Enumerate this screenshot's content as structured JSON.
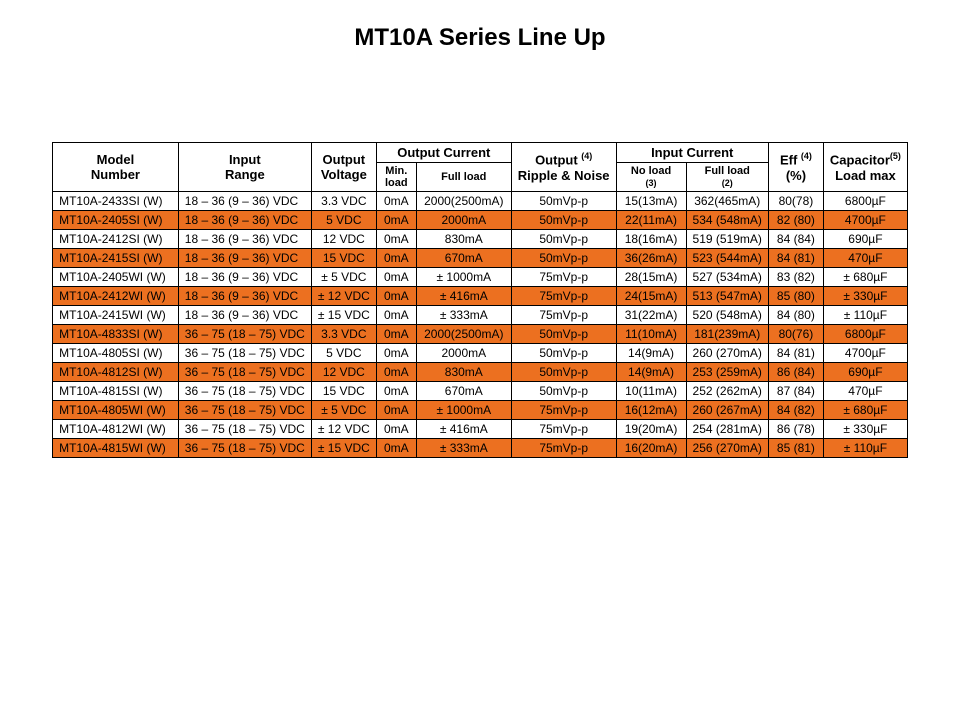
{
  "title": "MT10A Series Line Up",
  "highlight_color": "#ec7020",
  "headers": {
    "model": "Model\nNumber",
    "range": "Input\nRange",
    "ovolt": "Output\nVoltage",
    "outcur": "Output Current",
    "min": "Min.\nload",
    "full": "Full load",
    "ripple_sup": "(4)",
    "ripple_a": "Output",
    "ripple_b": "Ripple & Noise",
    "incur": "Input Current",
    "noload": "No load",
    "noload_sup": "(3)",
    "fullload": "Full load",
    "fullload_sup": "(2)",
    "eff": "Eff",
    "eff_sup": "(4)",
    "eff_unit": "(%)",
    "cap": "Capacitor",
    "cap_sup": "(5)",
    "cap_b": "Load max"
  },
  "rows": [
    {
      "hl": false,
      "model": "MT10A-2433SI (W)",
      "range": "18 – 36 (9 – 36) VDC",
      "ovolt": "3.3 VDC",
      "min": "0mA",
      "full": "2000(2500mA)",
      "ripple": "50mVp-p",
      "noload": "15(13mA)",
      "fullload": "362(465mA)",
      "eff": "80(78)",
      "cap": "6800µF"
    },
    {
      "hl": true,
      "model": "MT10A-2405SI (W)",
      "range": "18 – 36 (9 – 36) VDC",
      "ovolt": "5 VDC",
      "min": "0mA",
      "full": "2000mA",
      "ripple": "50mVp-p",
      "noload": "22(11mA)",
      "fullload": "534 (548mA)",
      "eff": "82 (80)",
      "cap": "4700µF"
    },
    {
      "hl": false,
      "model": "MT10A-2412SI (W)",
      "range": "18 – 36 (9 – 36) VDC",
      "ovolt": "12 VDC",
      "min": "0mA",
      "full": "830mA",
      "ripple": "50mVp-p",
      "noload": "18(16mA)",
      "fullload": "519 (519mA)",
      "eff": "84 (84)",
      "cap": "690µF"
    },
    {
      "hl": true,
      "model": "MT10A-2415SI (W)",
      "range": "18 – 36 (9 – 36) VDC",
      "ovolt": "15 VDC",
      "min": "0mA",
      "full": "670mA",
      "ripple": "50mVp-p",
      "noload": "36(26mA)",
      "fullload": "523 (544mA)",
      "eff": "84 (81)",
      "cap": "470µF"
    },
    {
      "hl": false,
      "model": "MT10A-2405WI (W)",
      "range": "18 – 36 (9 – 36) VDC",
      "ovolt": "± 5 VDC",
      "min": "0mA",
      "full": "± 1000mA",
      "ripple": "75mVp-p",
      "noload": "28(15mA)",
      "fullload": "527 (534mA)",
      "eff": "83 (82)",
      "cap": "± 680µF"
    },
    {
      "hl": true,
      "model": "MT10A-2412WI (W)",
      "range": "18 – 36 (9 – 36) VDC",
      "ovolt": "± 12 VDC",
      "min": "0mA",
      "full": "± 416mA",
      "ripple": "75mVp-p",
      "noload": "24(15mA)",
      "fullload": "513 (547mA)",
      "eff": "85 (80)",
      "cap": "± 330µF"
    },
    {
      "hl": false,
      "model": "MT10A-2415WI (W)",
      "range": "18 – 36 (9 – 36) VDC",
      "ovolt": "± 15 VDC",
      "min": "0mA",
      "full": "± 333mA",
      "ripple": "75mVp-p",
      "noload": "31(22mA)",
      "fullload": "520 (548mA)",
      "eff": "84 (80)",
      "cap": "± 110µF"
    },
    {
      "hl": true,
      "model": "MT10A-4833SI (W)",
      "range": "36 – 75 (18 – 75) VDC",
      "ovolt": "3.3 VDC",
      "min": "0mA",
      "full": "2000(2500mA)",
      "ripple": "50mVp-p",
      "noload": "11(10mA)",
      "fullload": "181(239mA)",
      "eff": "80(76)",
      "cap": "6800µF"
    },
    {
      "hl": false,
      "model": "MT10A-4805SI (W)",
      "range": "36 – 75 (18 – 75) VDC",
      "ovolt": "5 VDC",
      "min": "0mA",
      "full": "2000mA",
      "ripple": "50mVp-p",
      "noload": "14(9mA)",
      "fullload": "260 (270mA)",
      "eff": "84 (81)",
      "cap": "4700µF"
    },
    {
      "hl": true,
      "model": "MT10A-4812SI (W)",
      "range": "36 – 75 (18 – 75) VDC",
      "ovolt": "12 VDC",
      "min": "0mA",
      "full": "830mA",
      "ripple": "50mVp-p",
      "noload": "14(9mA)",
      "fullload": "253 (259mA)",
      "eff": "86 (84)",
      "cap": "690µF"
    },
    {
      "hl": false,
      "model": "MT10A-4815SI (W)",
      "range": "36 – 75 (18 – 75) VDC",
      "ovolt": "15 VDC",
      "min": "0mA",
      "full": "670mA",
      "ripple": "50mVp-p",
      "noload": "10(11mA)",
      "fullload": "252 (262mA)",
      "eff": "87 (84)",
      "cap": "470µF"
    },
    {
      "hl": true,
      "model": "MT10A-4805WI (W)",
      "range": "36 – 75 (18 – 75) VDC",
      "ovolt": "± 5 VDC",
      "min": "0mA",
      "full": "± 1000mA",
      "ripple": "75mVp-p",
      "noload": "16(12mA)",
      "fullload": "260 (267mA)",
      "eff": "84 (82)",
      "cap": "± 680µF"
    },
    {
      "hl": false,
      "model": "MT10A-4812WI (W)",
      "range": "36 – 75 (18 – 75) VDC",
      "ovolt": "± 12 VDC",
      "min": "0mA",
      "full": "± 416mA",
      "ripple": "75mVp-p",
      "noload": "19(20mA)",
      "fullload": "254 (281mA)",
      "eff": "86 (78)",
      "cap": "± 330µF"
    },
    {
      "hl": true,
      "model": "MT10A-4815WI (W)",
      "range": "36 – 75 (18 – 75) VDC",
      "ovolt": "± 15 VDC",
      "min": "0mA",
      "full": "± 333mA",
      "ripple": "75mVp-p",
      "noload": "16(20mA)",
      "fullload": "256 (270mA)",
      "eff": "85 (81)",
      "cap": "± 110µF"
    }
  ]
}
